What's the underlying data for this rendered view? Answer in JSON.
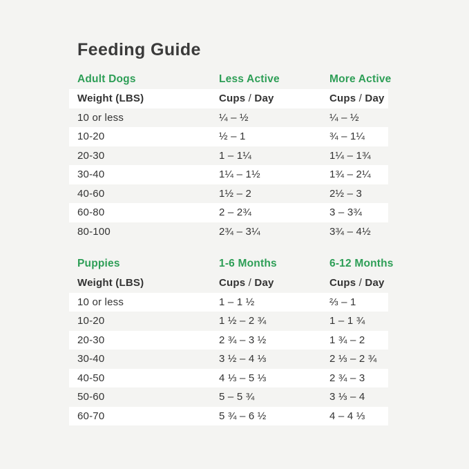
{
  "page": {
    "title": "Feeding Guide",
    "colors": {
      "background": "#f4f4f2",
      "stripe": "#ffffff",
      "accent_green": "#2d9e56",
      "heading_text": "#3a3a3a",
      "body_text": "#333333"
    }
  },
  "sections": [
    {
      "name": "Adult Dogs",
      "columns": [
        "Adult Dogs",
        "Less Active",
        "More Active"
      ],
      "subcolumns": [
        "Weight (LBS)",
        "Cups / Day",
        "Cups / Day"
      ],
      "rows": [
        [
          "10 or less",
          "¼ – ½",
          "¼ – ½"
        ],
        [
          "10-20",
          "½ – 1",
          "¾ – 1¼"
        ],
        [
          "20-30",
          "1 – 1¼",
          "1¼ – 1¾"
        ],
        [
          "30-40",
          "1¼ – 1½",
          "1¾ – 2¼"
        ],
        [
          "40-60",
          "1½ – 2",
          "2½ – 3"
        ],
        [
          "60-80",
          "2 – 2¾",
          "3 – 3¾"
        ],
        [
          "80-100",
          "2¾ – 3¼",
          "3¾ – 4½"
        ]
      ]
    },
    {
      "name": "Puppies",
      "columns": [
        "Puppies",
        "1-6 Months",
        "6-12 Months"
      ],
      "subcolumns": [
        "Weight (LBS)",
        "Cups / Day",
        "Cups / Day"
      ],
      "rows": [
        [
          "10 or less",
          "1 – 1 ½",
          "⅔ – 1"
        ],
        [
          "10-20",
          "1 ½ – 2 ¾",
          "1 – 1 ¾"
        ],
        [
          "20-30",
          "2 ¾ – 3 ½",
          "1 ¾ – 2"
        ],
        [
          "30-40",
          "3 ½ – 4 ⅓",
          "2 ⅓ – 2 ¾"
        ],
        [
          "40-50",
          "4 ⅓ – 5 ⅓",
          "2 ¾ – 3"
        ],
        [
          "50-60",
          "5 – 5 ¾",
          "3 ⅓ – 4"
        ],
        [
          "60-70",
          "5 ¾ – 6 ½",
          "4 – 4 ⅓"
        ]
      ]
    }
  ]
}
